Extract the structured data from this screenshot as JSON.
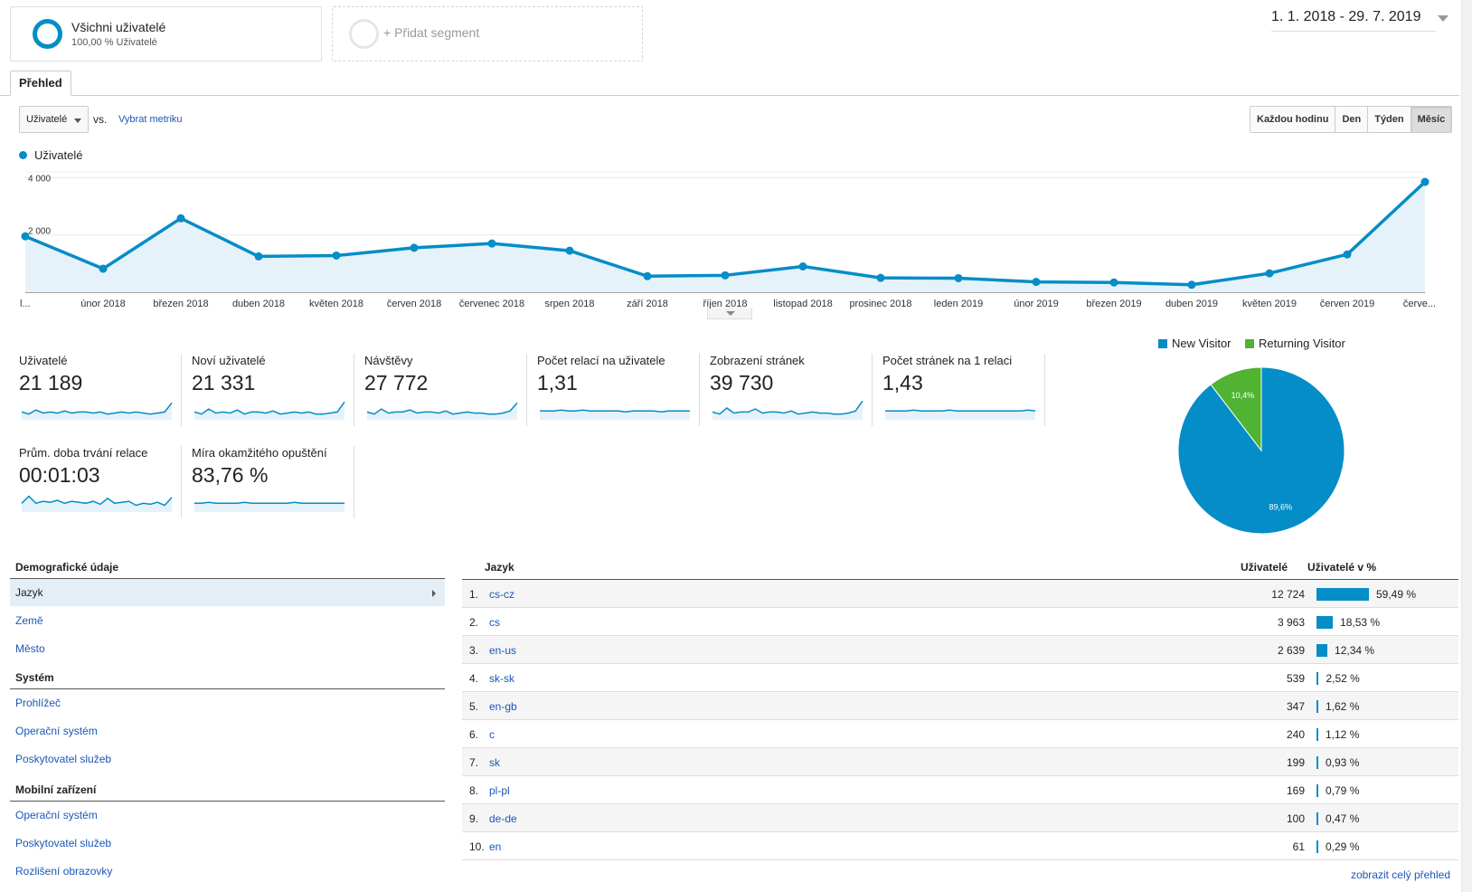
{
  "segments": {
    "primary": {
      "title": "Všichni uživatelé",
      "subtitle": "100,00 % Uživatelé"
    },
    "add": {
      "label": "+ Přidat segment"
    }
  },
  "date_range": "1. 1. 2018 - 29. 7. 2019",
  "tab": "Přehled",
  "controls": {
    "metric_select": "Uživatelé",
    "vs": "vs.",
    "pick_metric": "Vybrat metriku",
    "granularity": [
      "Každou hodinu",
      "Den",
      "Týden",
      "Měsíc"
    ],
    "active_granularity": "Měsíc"
  },
  "colors": {
    "accent": "#058dc7",
    "returning": "#50b432",
    "link": "#1a57b8"
  },
  "chart_data": [
    {
      "type": "area",
      "legend": [
        "Uživatelé"
      ],
      "x": [
        "l...",
        "únor 2018",
        "březen 2018",
        "duben 2018",
        "květen 2018",
        "červen 2018",
        "červenec 2018",
        "srpen 2018",
        "září 2018",
        "říjen 2018",
        "listopad 2018",
        "prosinec 2018",
        "leden 2019",
        "únor 2019",
        "březen 2019",
        "duben 2019",
        "květen 2019",
        "červen 2019",
        "červe..."
      ],
      "series": [
        {
          "name": "Uživatelé",
          "values": [
            1950,
            820,
            2580,
            1250,
            1280,
            1550,
            1700,
            1450,
            560,
            590,
            900,
            500,
            490,
            360,
            340,
            260,
            660,
            1320,
            3850
          ]
        }
      ],
      "y_ticks": [
        "2 000",
        "4 000"
      ],
      "y_tick_values": [
        2000,
        4000
      ],
      "ylim": [
        0,
        4200
      ]
    },
    {
      "type": "pie",
      "legend": [
        "New Visitor",
        "Returning Visitor"
      ],
      "categories": [
        "New Visitor",
        "Returning Visitor"
      ],
      "values": [
        89.6,
        10.4
      ],
      "labels": [
        "89,6%",
        "10,4%"
      ]
    }
  ],
  "scorecards": [
    {
      "label": "Uživatelé",
      "value": "21 189",
      "spark": [
        5,
        3,
        7,
        4,
        5,
        4,
        6,
        4,
        5,
        5,
        4,
        5,
        3,
        4,
        5,
        4,
        5,
        4,
        3,
        4,
        5,
        14
      ]
    },
    {
      "label": "Noví uživatelé",
      "value": "21 331",
      "spark": [
        5,
        3,
        8,
        4,
        5,
        4,
        7,
        3,
        5,
        5,
        4,
        6,
        3,
        4,
        5,
        4,
        5,
        3,
        3,
        4,
        5,
        15
      ]
    },
    {
      "label": "Návštěvy",
      "value": "27 772",
      "spark": [
        5,
        3,
        8,
        4,
        5,
        5,
        7,
        4,
        5,
        5,
        4,
        6,
        3,
        4,
        5,
        4,
        4,
        3,
        3,
        4,
        6,
        14
      ]
    },
    {
      "label": "Počet relací na uživatele",
      "value": "1,31",
      "spark": [
        6,
        6,
        6,
        7,
        6,
        6,
        7,
        6,
        6,
        6,
        6,
        6,
        5,
        6,
        6,
        6,
        6,
        5,
        6,
        6,
        6,
        6
      ]
    },
    {
      "label": "Zobrazení stránek",
      "value": "39 730",
      "spark": [
        5,
        3,
        9,
        4,
        5,
        5,
        8,
        4,
        5,
        5,
        4,
        6,
        3,
        4,
        5,
        4,
        4,
        3,
        3,
        4,
        6,
        16
      ]
    },
    {
      "label": "Počet stránek na 1 relaci",
      "value": "1,43",
      "spark": [
        6,
        6,
        6,
        6,
        7,
        6,
        6,
        6,
        6,
        7,
        6,
        6,
        6,
        6,
        6,
        6,
        6,
        6,
        6,
        6,
        7,
        6
      ]
    },
    {
      "label": "Prům. doba trvání relace",
      "value": "00:01:03",
      "spark": [
        6,
        13,
        6,
        8,
        7,
        9,
        6,
        8,
        7,
        6,
        8,
        5,
        11,
        6,
        7,
        8,
        4,
        6,
        5,
        7,
        4,
        12
      ]
    },
    {
      "label": "Míra okamžitého opuštění",
      "value": "83,76 %",
      "spark": [
        6,
        6,
        7,
        6,
        6,
        6,
        6,
        7,
        6,
        6,
        6,
        6,
        6,
        6,
        7,
        6,
        6,
        6,
        6,
        6,
        6,
        6
      ]
    }
  ],
  "demographics": {
    "sections": [
      {
        "title": "Demografické údaje",
        "items": [
          "Jazyk",
          "Země",
          "Město"
        ]
      },
      {
        "title": "Systém",
        "items": [
          "Prohlížeč",
          "Operační systém",
          "Poskytovatel služeb"
        ]
      },
      {
        "title": "Mobilní zařízení",
        "items": [
          "Operační systém",
          "Poskytovatel služeb",
          "Rozlišení obrazovky"
        ]
      }
    ],
    "selected": "Jazyk"
  },
  "table": {
    "headers": {
      "dimension": "Jazyk",
      "users": "Uživatelé",
      "percent": "Uživatelé v %"
    },
    "rows": [
      {
        "n": "1.",
        "lang": "cs-cz",
        "users": "12 724",
        "pct": "59,49 %",
        "share": 59.49
      },
      {
        "n": "2.",
        "lang": "cs",
        "users": "3 963",
        "pct": "18,53 %",
        "share": 18.53
      },
      {
        "n": "3.",
        "lang": "en-us",
        "users": "2 639",
        "pct": "12,34 %",
        "share": 12.34
      },
      {
        "n": "4.",
        "lang": "sk-sk",
        "users": "539",
        "pct": "2,52 %",
        "share": 2.52
      },
      {
        "n": "5.",
        "lang": "en-gb",
        "users": "347",
        "pct": "1,62 %",
        "share": 1.62
      },
      {
        "n": "6.",
        "lang": "c",
        "users": "240",
        "pct": "1,12 %",
        "share": 1.12
      },
      {
        "n": "7.",
        "lang": "sk",
        "users": "199",
        "pct": "0,93 %",
        "share": 0.93
      },
      {
        "n": "8.",
        "lang": "pl-pl",
        "users": "169",
        "pct": "0,79 %",
        "share": 0.79
      },
      {
        "n": "9.",
        "lang": "de-de",
        "users": "100",
        "pct": "0,47 %",
        "share": 0.47
      },
      {
        "n": "10.",
        "lang": "en",
        "users": "61",
        "pct": "0,29 %",
        "share": 0.29
      }
    ],
    "full_report": "zobrazit celý přehled"
  }
}
